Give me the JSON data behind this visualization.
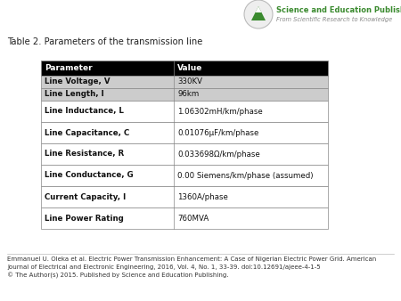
{
  "title": "Table 2. Parameters of the transmission line",
  "header": [
    "Parameter",
    "Value"
  ],
  "rows": [
    [
      "Line Voltage, V",
      "330KV"
    ],
    [
      "Line Length, l",
      "96km"
    ],
    [
      "Line Inductance, L",
      "1.06302mH/km/phase"
    ],
    [
      "Line Capacitance, C",
      "0.01076μF/km/phase"
    ],
    [
      "Line Resistance, R",
      "0.033698Ω/km/phase"
    ],
    [
      "Line Conductance, G",
      "0.00 Siemens/km/phase (assumed)"
    ],
    [
      "Current Capacity, I",
      "1360A/phase"
    ],
    [
      "Line Power Rating",
      "760MVA"
    ]
  ],
  "header_bg": "#000000",
  "header_fg": "#ffffff",
  "first_rows_bg": "#cccccc",
  "other_rows_bg": "#ffffff",
  "footer_line1": "Emmanuel U. Oleka et al. Electric Power Transmission Enhancement: A Case of Nigerian Electric Power Grid. American",
  "footer_line2": "Journal of Electrical and Electronic Engineering, 2016, Vol. 4, No. 1, 33-39. doi:10.12691/ajeee-4-1-5",
  "footer_line3": "© The Author(s) 2015. Published by Science and Education Publishing.",
  "logo_text1": "Science and Education Publishing",
  "logo_text2": "From Scientific Research to Knowledge",
  "logo_green": "#3a8a2e",
  "logo_circle_color": "#aaaaaa",
  "bg_color": "#ffffff",
  "border_color": "#555555",
  "table_border_color": "#888888"
}
